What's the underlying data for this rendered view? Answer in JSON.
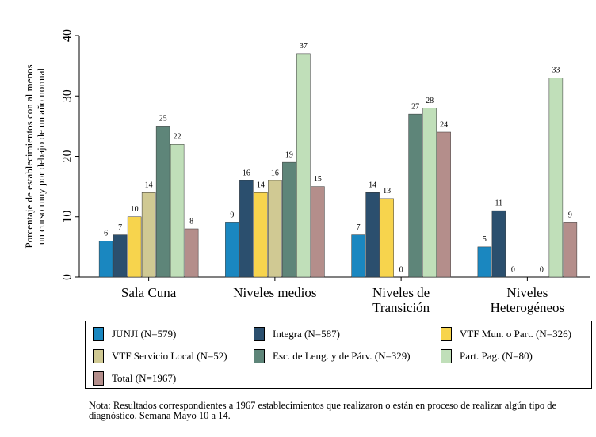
{
  "chart_data": {
    "type": "bar",
    "y_label": [
      "Porcentaje de establecimientos con al menos",
      "un curso muy por debajo de un año normal"
    ],
    "categories": [
      "Sala Cuna",
      "Niveles medios",
      "Niveles de Transición",
      "Niveles Heterogéneos"
    ],
    "series": [
      {
        "name": "JUNJI (N=579)",
        "color": "#1a87c0",
        "values": [
          6,
          9,
          7,
          5
        ]
      },
      {
        "name": "Integra (N=587)",
        "color": "#2b4f6e",
        "values": [
          7,
          16,
          14,
          11
        ]
      },
      {
        "name": "VTF Mun. o Part. (N=326)",
        "color": "#f7d44d",
        "values": [
          10,
          14,
          13,
          0
        ]
      },
      {
        "name": "VTF Servicio Local (N=52)",
        "color": "#d0c993",
        "values": [
          14,
          16,
          0,
          null
        ]
      },
      {
        "name": "Esc. de Leng. y de Párv. (N=329)",
        "color": "#5e8579",
        "values": [
          25,
          19,
          27,
          0
        ]
      },
      {
        "name": "Part. Pag. (N=80)",
        "color": "#c0dfb9",
        "values": [
          22,
          37,
          28,
          33
        ]
      },
      {
        "name": "Total (N=1967)",
        "color": "#b48e8b",
        "values": [
          8,
          15,
          24,
          9
        ]
      }
    ],
    "ylim": [
      0,
      40
    ],
    "yticks": [
      0,
      10,
      20,
      30,
      40
    ],
    "note": "Nota: Resultados correspondientes a 1967 establecimientos que realizaron o están en proceso de realizar algún tipo de diagnóstico. Semana Mayo 10 a 14."
  }
}
